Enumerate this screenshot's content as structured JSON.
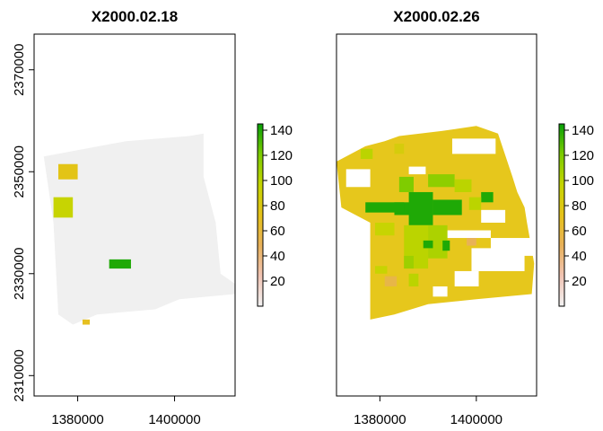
{
  "chart_data": [
    {
      "type": "heatmap",
      "title": "X2000.02.18",
      "xlabel": "",
      "ylabel": "",
      "x_range": [
        1371000,
        1412500
      ],
      "y_range": [
        2306000,
        2377000
      ],
      "x_ticks": [
        "1380000",
        "1400000"
      ],
      "y_ticks": [
        "2310000",
        "2330000",
        "2350000",
        "2370000"
      ],
      "legend_ticks": [
        "20",
        "40",
        "60",
        "80",
        "100",
        "120",
        "140"
      ],
      "legend_range": [
        0,
        145
      ],
      "colors": {
        "background": "#f0f0f0",
        "ramp": [
          "#f2f2f2",
          "#f1c4b4",
          "#e8b15a",
          "#e6c219",
          "#c5d500",
          "#7ccc00",
          "#07a007"
        ]
      },
      "footprint_polygon_xy": [
        [
          1373000,
          2353000
        ],
        [
          1390000,
          2356000
        ],
        [
          1403000,
          2357000
        ],
        [
          1406000,
          2357500
        ],
        [
          1406000,
          2349000
        ],
        [
          1408500,
          2340000
        ],
        [
          1409500,
          2330000
        ],
        [
          1412500,
          2328000
        ],
        [
          1412500,
          2326000
        ],
        [
          1401000,
          2325000
        ],
        [
          1396000,
          2323000
        ],
        [
          1384000,
          2322000
        ],
        [
          1379000,
          2320000
        ],
        [
          1376000,
          2322000
        ],
        [
          1375000,
          2340000
        ]
      ],
      "patches": [
        {
          "x": [
            1376000,
            1380000
          ],
          "y": [
            2348500,
            2351500
          ],
          "value": 75
        },
        {
          "x": [
            1375000,
            1379000
          ],
          "y": [
            2341000,
            2345000
          ],
          "value": 95
        },
        {
          "x": [
            1386500,
            1391000
          ],
          "y": [
            2331000,
            2332800
          ],
          "value": 140
        },
        {
          "x": [
            1381000,
            1382500
          ],
          "y": [
            2320000,
            2321000
          ],
          "value": 70
        }
      ]
    },
    {
      "type": "heatmap",
      "title": "X2000.02.26",
      "xlabel": "",
      "ylabel": "",
      "x_range": [
        1371000,
        1412500
      ],
      "y_range": [
        2306000,
        2377000
      ],
      "x_ticks": [
        "1380000",
        "1400000"
      ],
      "legend_ticks": [
        "20",
        "40",
        "60",
        "80",
        "100",
        "120",
        "140"
      ],
      "legend_range": [
        0,
        145
      ],
      "colors": {
        "background": "#e6c71c",
        "ramp": [
          "#f2f2f2",
          "#f1c4b4",
          "#e8b15a",
          "#e6c219",
          "#c5d500",
          "#7ccc00",
          "#07a007"
        ]
      },
      "footprint_polygon_xy": [
        [
          1371000,
          2352000
        ],
        [
          1377000,
          2355000
        ],
        [
          1381000,
          2356000
        ],
        [
          1384000,
          2357000
        ],
        [
          1393000,
          2358000
        ],
        [
          1400000,
          2359000
        ],
        [
          1404500,
          2357500
        ],
        [
          1407500,
          2349000
        ],
        [
          1408500,
          2346000
        ],
        [
          1410000,
          2343000
        ],
        [
          1410500,
          2340000
        ],
        [
          1412000,
          2332000
        ],
        [
          1411500,
          2326000
        ],
        [
          1400000,
          2325000
        ],
        [
          1390000,
          2324000
        ],
        [
          1383000,
          2322000
        ],
        [
          1378000,
          2321000
        ],
        [
          1378000,
          2340000
        ],
        [
          1372000,
          2343000
        ]
      ],
      "holes": [
        {
          "x": [
            1373000,
            1378000
          ],
          "y": [
            2347000,
            2350500
          ]
        },
        {
          "x": [
            1386000,
            1389500
          ],
          "y": [
            2349500,
            2351000
          ]
        },
        {
          "x": [
            1395000,
            1404000
          ],
          "y": [
            2353500,
            2356500
          ]
        },
        {
          "x": [
            1401000,
            1406000
          ],
          "y": [
            2340000,
            2342500
          ]
        },
        {
          "x": [
            1394000,
            1403000
          ],
          "y": [
            2337000,
            2338500
          ]
        },
        {
          "x": [
            1399000,
            1410000
          ],
          "y": [
            2330500,
            2335000
          ]
        },
        {
          "x": [
            1403000,
            1412000
          ],
          "y": [
            2333500,
            2337000
          ]
        },
        {
          "x": [
            1395500,
            1400500
          ],
          "y": [
            2327500,
            2330500
          ]
        },
        {
          "x": [
            1391000,
            1394000
          ],
          "y": [
            2325500,
            2327500
          ]
        }
      ],
      "patches": [
        {
          "x": [
            1383000,
            1388000
          ],
          "y": [
            2341500,
            2344000
          ],
          "value": 140
        },
        {
          "x": [
            1386000,
            1391000
          ],
          "y": [
            2339500,
            2346000
          ],
          "value": 140
        },
        {
          "x": [
            1391000,
            1397000
          ],
          "y": [
            2341500,
            2344500
          ],
          "value": 140
        },
        {
          "x": [
            1377000,
            1385000
          ],
          "y": [
            2342000,
            2344000
          ],
          "value": 140
        },
        {
          "x": [
            1384000,
            1387000
          ],
          "y": [
            2346000,
            2349000
          ],
          "value": 120
        },
        {
          "x": [
            1390000,
            1395500
          ],
          "y": [
            2347000,
            2349500
          ],
          "value": 115
        },
        {
          "x": [
            1395500,
            1399000
          ],
          "y": [
            2346000,
            2348500
          ],
          "value": 100
        },
        {
          "x": [
            1401000,
            1403500
          ],
          "y": [
            2344000,
            2346000
          ],
          "value": 140
        },
        {
          "x": [
            1398500,
            1401000
          ],
          "y": [
            2342500,
            2345000
          ],
          "value": 100
        },
        {
          "x": [
            1379000,
            1383000
          ],
          "y": [
            2337500,
            2340000
          ],
          "value": 95
        },
        {
          "x": [
            1385000,
            1390000
          ],
          "y": [
            2331000,
            2339500
          ],
          "value": 100
        },
        {
          "x": [
            1390000,
            1394000
          ],
          "y": [
            2333000,
            2339500
          ],
          "value": 105
        },
        {
          "x": [
            1389000,
            1391000
          ],
          "y": [
            2335000,
            2336500
          ],
          "value": 140
        },
        {
          "x": [
            1393000,
            1394500
          ],
          "y": [
            2334500,
            2336500
          ],
          "value": 140
        },
        {
          "x": [
            1385000,
            1387000
          ],
          "y": [
            2331000,
            2333500
          ],
          "value": 110
        },
        {
          "x": [
            1379000,
            1381500
          ],
          "y": [
            2330000,
            2331500
          ],
          "value": 95
        },
        {
          "x": [
            1381000,
            1383500
          ],
          "y": [
            2327500,
            2329500
          ],
          "value": 55
        },
        {
          "x": [
            1386000,
            1388000
          ],
          "y": [
            2327500,
            2330000
          ],
          "value": 100
        },
        {
          "x": [
            1398000,
            1400000
          ],
          "y": [
            2335500,
            2337000
          ],
          "value": 50
        },
        {
          "x": [
            1376000,
            1378500
          ],
          "y": [
            2352500,
            2354500
          ],
          "value": 100
        },
        {
          "x": [
            1383000,
            1385000
          ],
          "y": [
            2353500,
            2355500
          ],
          "value": 85
        }
      ]
    }
  ]
}
